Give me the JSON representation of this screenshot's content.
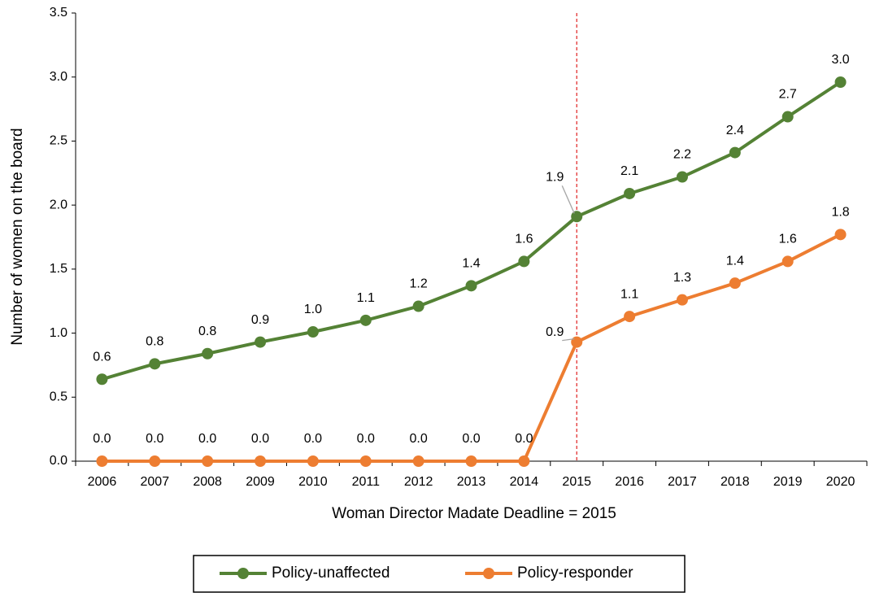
{
  "chart_data": {
    "type": "line",
    "x_label": "Woman Director Madate Deadline = 2015",
    "y_label": "Number of women on the board",
    "categories": [
      "2006",
      "2007",
      "2008",
      "2009",
      "2010",
      "2011",
      "2012",
      "2013",
      "2014",
      "2015",
      "2016",
      "2017",
      "2018",
      "2019",
      "2020"
    ],
    "series": [
      {
        "name": "Policy-unaffected",
        "color": "#548235",
        "values": [
          0.64,
          0.76,
          0.84,
          0.93,
          1.01,
          1.1,
          1.21,
          1.37,
          1.56,
          1.91,
          2.09,
          2.22,
          2.41,
          2.69,
          2.96
        ],
        "value_labels": [
          "0.6",
          "0.8",
          "0.8",
          "0.9",
          "1.0",
          "1.1",
          "1.2",
          "1.4",
          "1.6",
          "1.9",
          "2.1",
          "2.2",
          "2.4",
          "2.7",
          "3.0"
        ]
      },
      {
        "name": "Policy-responder",
        "color": "#ed7d31",
        "values": [
          0,
          0,
          0,
          0,
          0,
          0,
          0,
          0,
          0,
          0.93,
          1.13,
          1.26,
          1.39,
          1.56,
          1.77
        ],
        "value_labels": [
          "0.0",
          "0.0",
          "0.0",
          "0.0",
          "0.0",
          "0.0",
          "0.0",
          "0.0",
          "0.0",
          "0.9",
          "1.1",
          "1.3",
          "1.4",
          "1.6",
          "1.8"
        ]
      }
    ],
    "ylim": [
      0,
      3.5
    ],
    "yticks": [
      {
        "value": 0,
        "label": "0.0"
      },
      0.5,
      {
        "value": 1,
        "label": "1.0"
      },
      1.5,
      {
        "value": 2,
        "label": "2.0"
      },
      2.5,
      {
        "value": 3,
        "label": "3.0"
      },
      3.5
    ],
    "grid": false,
    "vline": {
      "category": "2015",
      "color": "#e02020"
    },
    "legend": "bottom"
  }
}
